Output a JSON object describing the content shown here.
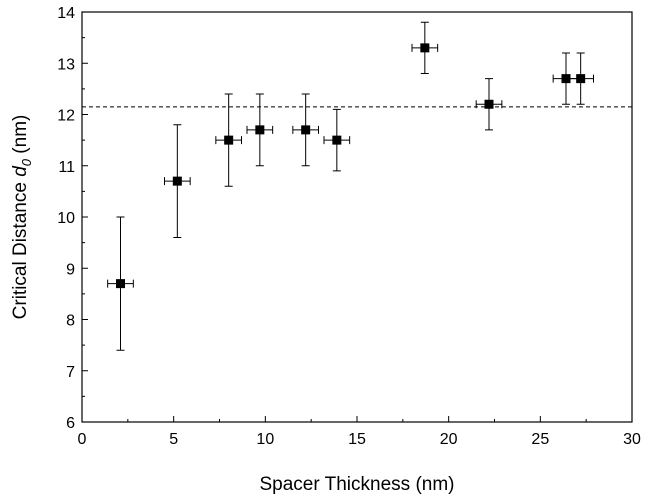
{
  "chart_data": {
    "type": "scatter",
    "xlabel": "Spacer Thickness (nm)",
    "ylabel_parts": {
      "main": "Critical Distance ",
      "symbol": "d",
      "subscript": "0",
      "unit": " (nm)"
    },
    "xlim": [
      0,
      30
    ],
    "ylim": [
      6,
      14
    ],
    "x_ticks": [
      0,
      5,
      10,
      15,
      20,
      25,
      30
    ],
    "y_ticks": [
      6,
      7,
      8,
      9,
      10,
      11,
      12,
      13,
      14
    ],
    "grid": false,
    "reference_line": {
      "y": 12.15,
      "style": "dashed"
    },
    "points": [
      {
        "x": 2.1,
        "y": 8.7,
        "xerr": 0.7,
        "yerr": 1.3
      },
      {
        "x": 5.2,
        "y": 10.7,
        "xerr": 0.7,
        "yerr": 1.1
      },
      {
        "x": 8.0,
        "y": 11.5,
        "xerr": 0.7,
        "yerr": 0.9
      },
      {
        "x": 9.7,
        "y": 11.7,
        "xerr": 0.7,
        "yerr": 0.7
      },
      {
        "x": 12.2,
        "y": 11.7,
        "xerr": 0.7,
        "yerr": 0.7
      },
      {
        "x": 13.9,
        "y": 11.5,
        "xerr": 0.7,
        "yerr": 0.6
      },
      {
        "x": 18.7,
        "y": 13.3,
        "xerr": 0.7,
        "yerr": 0.5
      },
      {
        "x": 22.2,
        "y": 12.2,
        "xerr": 0.7,
        "yerr": 0.5
      },
      {
        "x": 26.4,
        "y": 12.7,
        "xerr": 0.7,
        "yerr": 0.5
      },
      {
        "x": 27.2,
        "y": 12.7,
        "xerr": 0.7,
        "yerr": 0.5
      }
    ],
    "marker": {
      "shape": "square",
      "color": "#000000"
    }
  }
}
